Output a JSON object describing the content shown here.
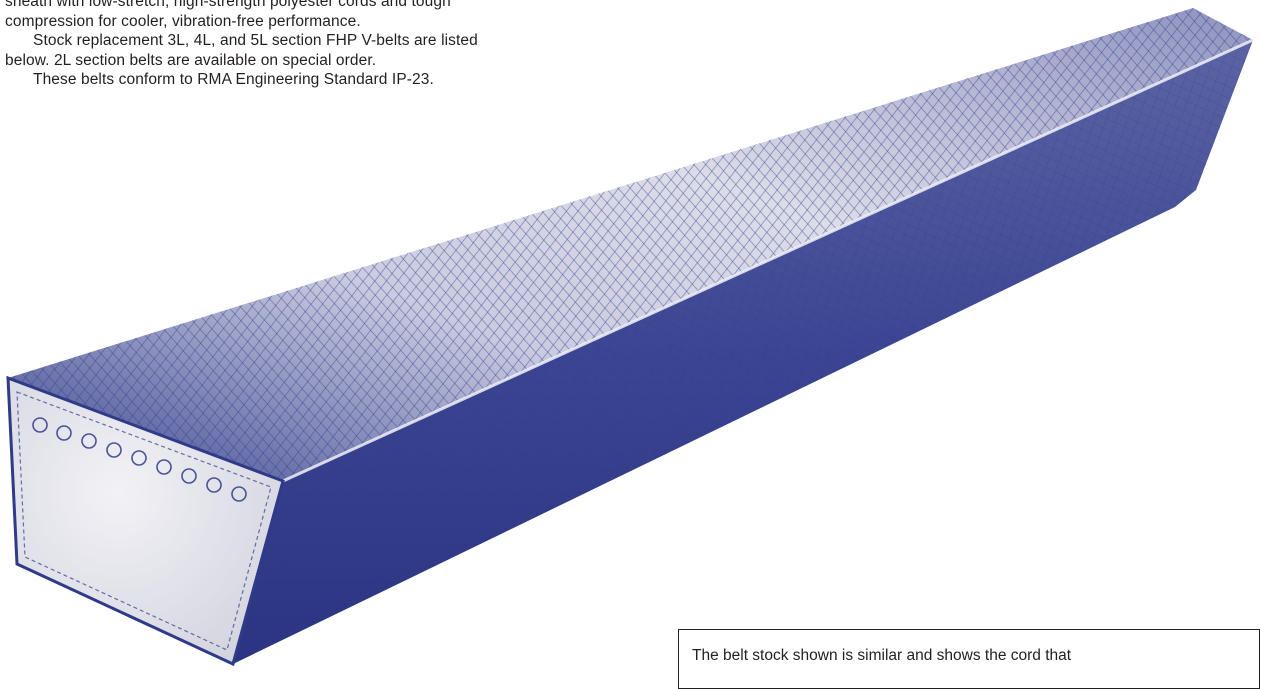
{
  "intro": {
    "line_0": "sheath with low-stretch, high-strength polyester cords and tough",
    "line_1": "compression for cooler, vibration-free performance.",
    "line_2": "Stock replacement 3L, 4L, and 5L section FHP V-belts are listed",
    "line_3": "below. 2L section belts are available on special order.",
    "line_4": "These belts conform to RMA Engineering Standard IP-23."
  },
  "illustration": {
    "subject": "V-belt cross-section (FHP)",
    "color": "#2f3a88",
    "face_color": "#e9e9ee"
  },
  "note": {
    "text": "The belt stock shown is similar and shows the cord that"
  }
}
